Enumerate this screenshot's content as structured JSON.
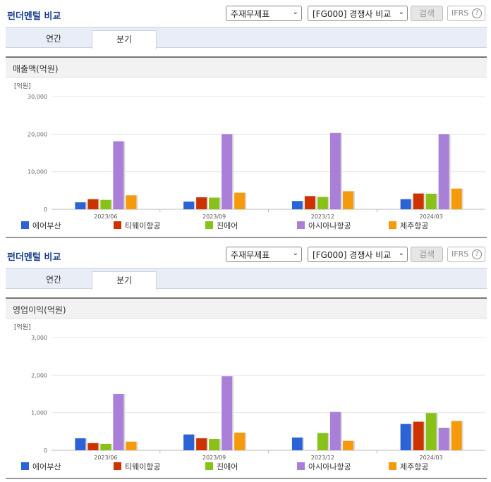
{
  "panels": [
    {
      "title": "펀더멘털 비교",
      "statement_select": "주재무제표",
      "compare_select": "[FG000] 경쟁사 비교",
      "search_label": "검색",
      "ifrs_label": "IFRS",
      "help_glyph": "?",
      "tabs": [
        {
          "label": "연간"
        },
        {
          "label": "분기"
        }
      ],
      "active_tab": "분기",
      "section_title": "매출액(억원)",
      "unit_label": "[억원]",
      "chart_data": {
        "type": "bar",
        "title": "매출액(억원)",
        "categories": [
          "2023/06",
          "2023/09",
          "2023/12",
          "2024/03"
        ],
        "ylim": [
          0,
          30000
        ],
        "yticks": [
          "0",
          "10,000",
          "20,000",
          "30,000"
        ],
        "ytick_values": [
          0,
          10000,
          20000,
          30000
        ],
        "legend_placement": "bottom",
        "series": [
          {
            "name": "에어부산",
            "color": "#2b63d6",
            "values": [
              1850,
              2050,
              2200,
              2700
            ]
          },
          {
            "name": "티웨이항공",
            "color": "#cc3300",
            "values": [
              2700,
              3200,
              3500,
              4200
            ]
          },
          {
            "name": "진에어",
            "color": "#88c218",
            "values": [
              2500,
              3100,
              3300,
              4150
            ]
          },
          {
            "name": "아시아나항공",
            "color": "#a97fd8",
            "values": [
              18100,
              20000,
              20300,
              20000
            ]
          },
          {
            "name": "제주항공",
            "color": "#f59a0b",
            "values": [
              3700,
              4400,
              4800,
              5500
            ]
          }
        ]
      }
    },
    {
      "title": "펀더멘털 비교",
      "statement_select": "주재무제표",
      "compare_select": "[FG000] 경쟁사 비교",
      "search_label": "검색",
      "ifrs_label": "IFRS",
      "help_glyph": "?",
      "tabs": [
        {
          "label": "연간"
        },
        {
          "label": "분기"
        }
      ],
      "active_tab": "분기",
      "section_title": "영업이익(억원)",
      "unit_label": "[억원]",
      "chart_data": {
        "type": "bar",
        "title": "영업이익(억원)",
        "categories": [
          "2023/06",
          "2023/09",
          "2023/12",
          "2024/03"
        ],
        "ylim": [
          0,
          3000
        ],
        "yticks": [
          "0",
          "1,000",
          "2,000",
          "3,000"
        ],
        "ytick_values": [
          0,
          1000,
          2000,
          3000
        ],
        "legend_placement": "bottom",
        "series": [
          {
            "name": "에어부산",
            "color": "#2b63d6",
            "values": [
              320,
              420,
              340,
              700
            ]
          },
          {
            "name": "티웨이항공",
            "color": "#cc3300",
            "values": [
              190,
              320,
              -20,
              760
            ]
          },
          {
            "name": "진에어",
            "color": "#88c218",
            "values": [
              170,
              300,
              460,
              990
            ]
          },
          {
            "name": "아시아나항공",
            "color": "#a97fd8",
            "values": [
              1500,
              1970,
              1020,
              600
            ]
          },
          {
            "name": "제주항공",
            "color": "#f59a0b",
            "values": [
              230,
              470,
              250,
              780
            ]
          }
        ]
      }
    }
  ]
}
